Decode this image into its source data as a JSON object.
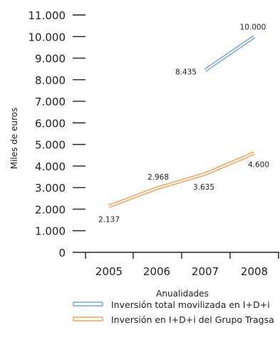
{
  "chart_data": {
    "type": "line",
    "categories": [
      "2005",
      "2006",
      "2007",
      "2008"
    ],
    "xlabel": "Anualidades",
    "ylabel": "Miles de euros",
    "ylim": [
      0,
      11000
    ],
    "yticks": [
      0,
      1000,
      2000,
      3000,
      4000,
      5000,
      6000,
      7000,
      8000,
      9000,
      10000,
      11000
    ],
    "ytick_labels": [
      "0",
      "1.000",
      "2.000",
      "3.000",
      "4.000",
      "5.000",
      "6.000",
      "7.000",
      "8.000",
      "9.000",
      "10.000",
      "11.000"
    ],
    "grid": false,
    "legend_position": "bottom",
    "series": [
      {
        "name": "Inversión total movilizada en I+D+i",
        "color": "#7aa6d8",
        "points": [
          {
            "x": "2007",
            "y": 8435,
            "label": "8.435"
          },
          {
            "x": "2008",
            "y": 10000,
            "label": "10.000"
          }
        ]
      },
      {
        "name": "Inversión en I+D+i del Grupo Tragsa",
        "color": "#f5a05a",
        "points": [
          {
            "x": "2005",
            "y": 2137,
            "label": "2.137"
          },
          {
            "x": "2006",
            "y": 2968,
            "label": "2.968"
          },
          {
            "x": "2007",
            "y": 3635,
            "label": "3.635"
          },
          {
            "x": "2008",
            "y": 4600,
            "label": "4.600"
          }
        ]
      }
    ]
  }
}
